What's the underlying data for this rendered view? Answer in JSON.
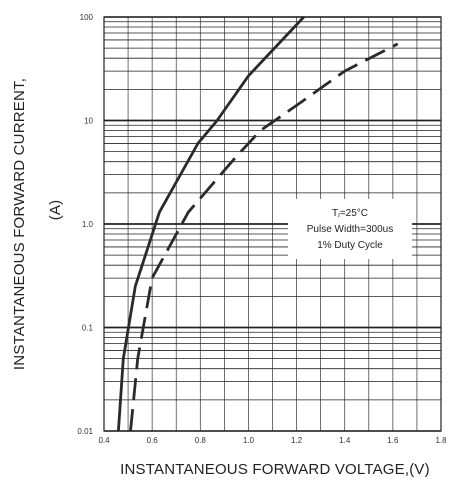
{
  "chart_data": {
    "type": "line",
    "xlabel": "INSTANTANEOUS FORWARD VOLTAGE,(V)",
    "ylabel_line1": "INSTANTANEOUS FORWARD CURRENT,",
    "ylabel_line2": "(A)",
    "xlim": [
      0.4,
      1.8
    ],
    "ylim": [
      0.01,
      100
    ],
    "y_scale": "log",
    "x_tick_labels": [
      "0.4",
      "0.6",
      "0.8",
      "1.0",
      "1.2",
      "1.4",
      "1.6",
      "1.8"
    ],
    "x_tick_values": [
      0.4,
      0.6,
      0.8,
      1.0,
      1.2,
      1.4,
      1.6,
      1.8
    ],
    "y_tick_labels": [
      "0.01",
      "0.1",
      "1.0",
      "10",
      "100"
    ],
    "y_tick_values": [
      0.01,
      0.1,
      1.0,
      10,
      100
    ],
    "grid": true,
    "annotation": {
      "line1": "Tⱼ=25°C",
      "line2": "Pulse Width=300us",
      "line3": "1% Duty Cycle"
    },
    "series": [
      {
        "style": "solid",
        "points": [
          [
            0.46,
            0.01
          ],
          [
            0.48,
            0.05
          ],
          [
            0.53,
            0.25
          ],
          [
            0.63,
            1.3
          ],
          [
            0.79,
            6.0
          ],
          [
            0.87,
            10.0
          ],
          [
            1.0,
            27.0
          ],
          [
            1.23,
            100.0
          ]
        ]
      },
      {
        "style": "dashed",
        "points": [
          [
            0.51,
            0.01
          ],
          [
            0.54,
            0.05
          ],
          [
            0.6,
            0.3
          ],
          [
            0.75,
            1.3
          ],
          [
            0.95,
            4.5
          ],
          [
            1.05,
            8.0
          ],
          [
            1.2,
            14.0
          ],
          [
            1.4,
            30.0
          ],
          [
            1.62,
            55.0
          ]
        ]
      }
    ]
  }
}
